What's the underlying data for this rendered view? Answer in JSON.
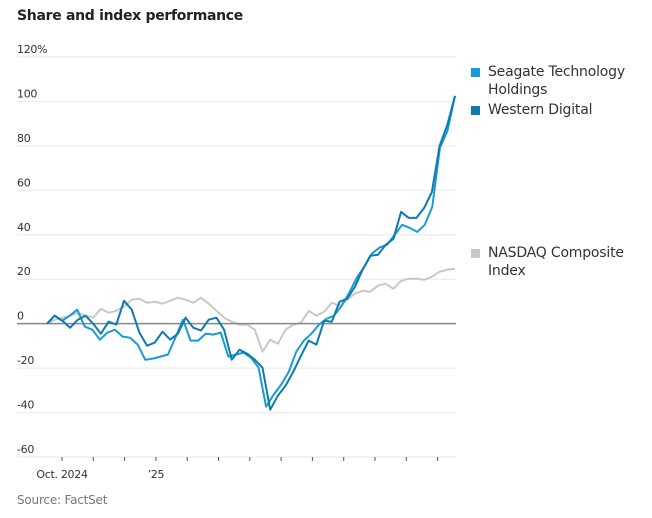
{
  "chart_data": {
    "type": "line",
    "title": "Share and index performance",
    "source": "Source: FactSet",
    "xlabel": "",
    "ylabel": "",
    "ylim": [
      -60,
      120
    ],
    "yticks": [
      120,
      100,
      80,
      60,
      40,
      20,
      0,
      -20,
      -40,
      -60
    ],
    "ytick_labels": [
      "120%",
      "100",
      "80",
      "60",
      "40",
      "20",
      "0",
      "-20",
      "-40",
      "-60"
    ],
    "xtick_labels": [
      {
        "label": "Oct. 2024",
        "month_index": 0
      },
      {
        "label": "’25",
        "month_index": 3
      }
    ],
    "month_ticks": 13,
    "grid": true,
    "legend_placement": "right",
    "series": [
      {
        "name": "Seagate Technology Holdings",
        "color": "#1a9ad6",
        "values": [
          0,
          3.6,
          1.3,
          3.6,
          6.3,
          -1.3,
          -2.7,
          -7.2,
          -4.0,
          -2.7,
          -5.8,
          -6.3,
          -9.4,
          -16.2,
          -15.7,
          -14.8,
          -13.9,
          -6.3,
          1.8,
          -7.6,
          -7.6,
          -4.5,
          -4.9,
          -4.0,
          -14.8,
          -13.9,
          -13.0,
          -15.3,
          -19.8,
          -37.3,
          -31.9,
          -27.4,
          -21.6,
          -12.6,
          -7.6,
          -4.5,
          -0.4,
          2.2,
          3.6,
          8.1,
          13.9,
          20.7,
          25.6,
          31.5,
          34.2,
          35.5,
          39.9,
          44.5,
          43.1,
          41.3,
          44.5,
          52.6,
          79.1,
          86.7,
          102.5
        ]
      },
      {
        "name": "Western Digital",
        "color": "#0e7bb0",
        "values": [
          0,
          3.6,
          1.3,
          -1.8,
          1.8,
          3.6,
          0,
          -4.5,
          0.9,
          -0.4,
          10.3,
          6.3,
          -4.0,
          -9.9,
          -8.5,
          -3.6,
          -7.2,
          -4.5,
          2.7,
          -1.8,
          -3.1,
          1.8,
          2.7,
          -2.7,
          -16.2,
          -11.7,
          -13.5,
          -16.2,
          -19.8,
          -38.7,
          -32.4,
          -27.9,
          -21.6,
          -14.4,
          -7.6,
          -9.4,
          1.3,
          0.9,
          9.9,
          11.2,
          16.6,
          24.3,
          30.6,
          31.0,
          35.5,
          38.2,
          50.3,
          47.6,
          47.6,
          52.1,
          59.3,
          80.0,
          89.4,
          102.5
        ]
      },
      {
        "name": "NASDAQ Composite Index",
        "color": "#c8c8c8",
        "values": [
          0,
          1.8,
          2.7,
          3.6,
          4.9,
          3.6,
          2.7,
          6.7,
          4.9,
          5.8,
          7.6,
          10.8,
          11.2,
          9.4,
          9.9,
          9.0,
          10.3,
          11.7,
          10.8,
          9.4,
          11.7,
          9.0,
          5.8,
          2.7,
          0.9,
          -0.4,
          -0.4,
          -2.7,
          -12.6,
          -7.2,
          -9.0,
          -2.7,
          -0.4,
          0.4,
          5.8,
          3.6,
          5.4,
          9.4,
          8.1,
          10.8,
          13.5,
          14.8,
          14.4,
          17.1,
          18.0,
          15.7,
          19.3,
          20.2,
          20.2,
          19.8,
          21.1,
          23.4,
          24.3,
          24.7
        ]
      }
    ]
  }
}
